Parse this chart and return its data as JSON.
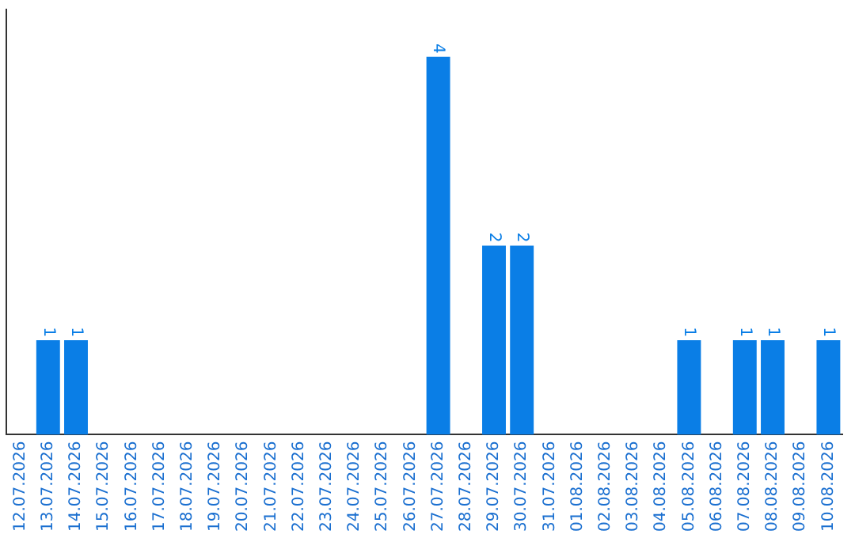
{
  "chart_data": {
    "type": "bar",
    "categories": [
      "12.07.2026",
      "13.07.2026",
      "14.07.2026",
      "15.07.2026",
      "16.07.2026",
      "17.07.2026",
      "18.07.2026",
      "19.07.2026",
      "20.07.2026",
      "21.07.2026",
      "22.07.2026",
      "23.07.2026",
      "24.07.2026",
      "25.07.2026",
      "26.07.2026",
      "27.07.2026",
      "28.07.2026",
      "29.07.2026",
      "30.07.2026",
      "31.07.2026",
      "01.08.2026",
      "02.08.2026",
      "03.08.2026",
      "04.08.2026",
      "05.08.2026",
      "06.08.2026",
      "07.08.2026",
      "08.08.2026",
      "09.08.2026",
      "10.08.2026"
    ],
    "values": [
      0,
      1,
      1,
      0,
      0,
      0,
      0,
      0,
      0,
      0,
      0,
      0,
      0,
      0,
      0,
      4,
      0,
      2,
      2,
      0,
      0,
      0,
      0,
      0,
      1,
      0,
      1,
      1,
      0,
      1
    ],
    "value_labels": [
      null,
      "1",
      "1",
      null,
      null,
      null,
      null,
      null,
      null,
      null,
      null,
      null,
      null,
      null,
      null,
      "4",
      null,
      "2",
      "2",
      null,
      null,
      null,
      null,
      null,
      "1",
      null,
      "1",
      "1",
      null,
      "1"
    ],
    "color": "#0a7ee6",
    "tick_labels": "x",
    "grid": false,
    "legend": false
  }
}
